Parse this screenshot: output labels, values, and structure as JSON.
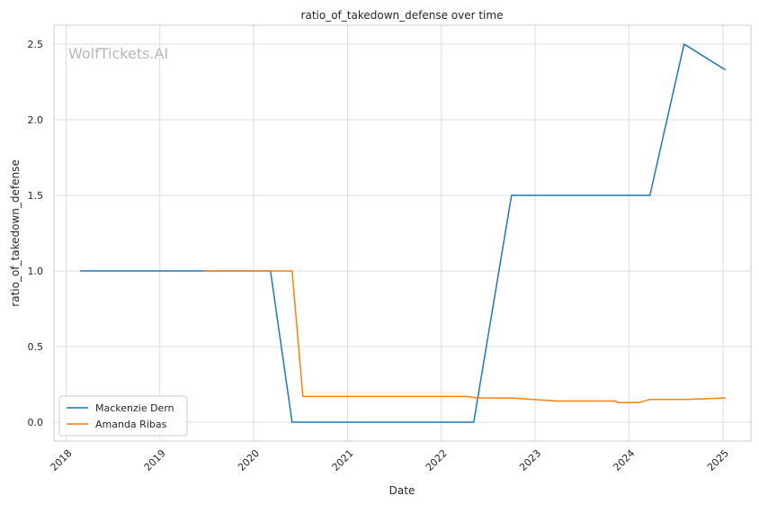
{
  "chart_data": {
    "type": "line",
    "title": "ratio_of_takedown_defense over time",
    "xlabel": "Date",
    "ylabel": "ratio_of_takedown_defense",
    "watermark": "WolfTickets.AI",
    "xlim": [
      "2017-11-15",
      "2025-04-20"
    ],
    "ylim": [
      -0.125,
      2.625
    ],
    "x_ticks": [
      "2018",
      "2019",
      "2020",
      "2021",
      "2022",
      "2023",
      "2024",
      "2025"
    ],
    "y_ticks": [
      "0.0",
      "0.5",
      "1.0",
      "1.5",
      "2.0",
      "2.5"
    ],
    "grid": true,
    "legend_position": "lower-left",
    "series": [
      {
        "name": "Mackenzie Dern",
        "color": "#1f77b4",
        "x": [
          "2018-02-25",
          "2019-06-10",
          "2020-03-07",
          "2020-05-30",
          "2022-05-07",
          "2022-10-01",
          "2024-03-23",
          "2024-08-03",
          "2025-01-11"
        ],
        "y": [
          1.0,
          1.0,
          1.0,
          0.0,
          0.0,
          1.5,
          1.5,
          2.5,
          2.33
        ]
      },
      {
        "name": "Amanda Ribas",
        "color": "#ff7f0e",
        "x": [
          "2019-06-22",
          "2020-05-30",
          "2020-07-11",
          "2022-04-09",
          "2022-05-21",
          "2022-10-01",
          "2023-03-25",
          "2023-11-11",
          "2023-11-18",
          "2024-02-10",
          "2024-03-23",
          "2024-08-03",
          "2025-01-11"
        ],
        "y": [
          1.0,
          1.0,
          0.17,
          0.17,
          0.16,
          0.16,
          0.14,
          0.14,
          0.13,
          0.13,
          0.15,
          0.15,
          0.16
        ]
      }
    ]
  }
}
